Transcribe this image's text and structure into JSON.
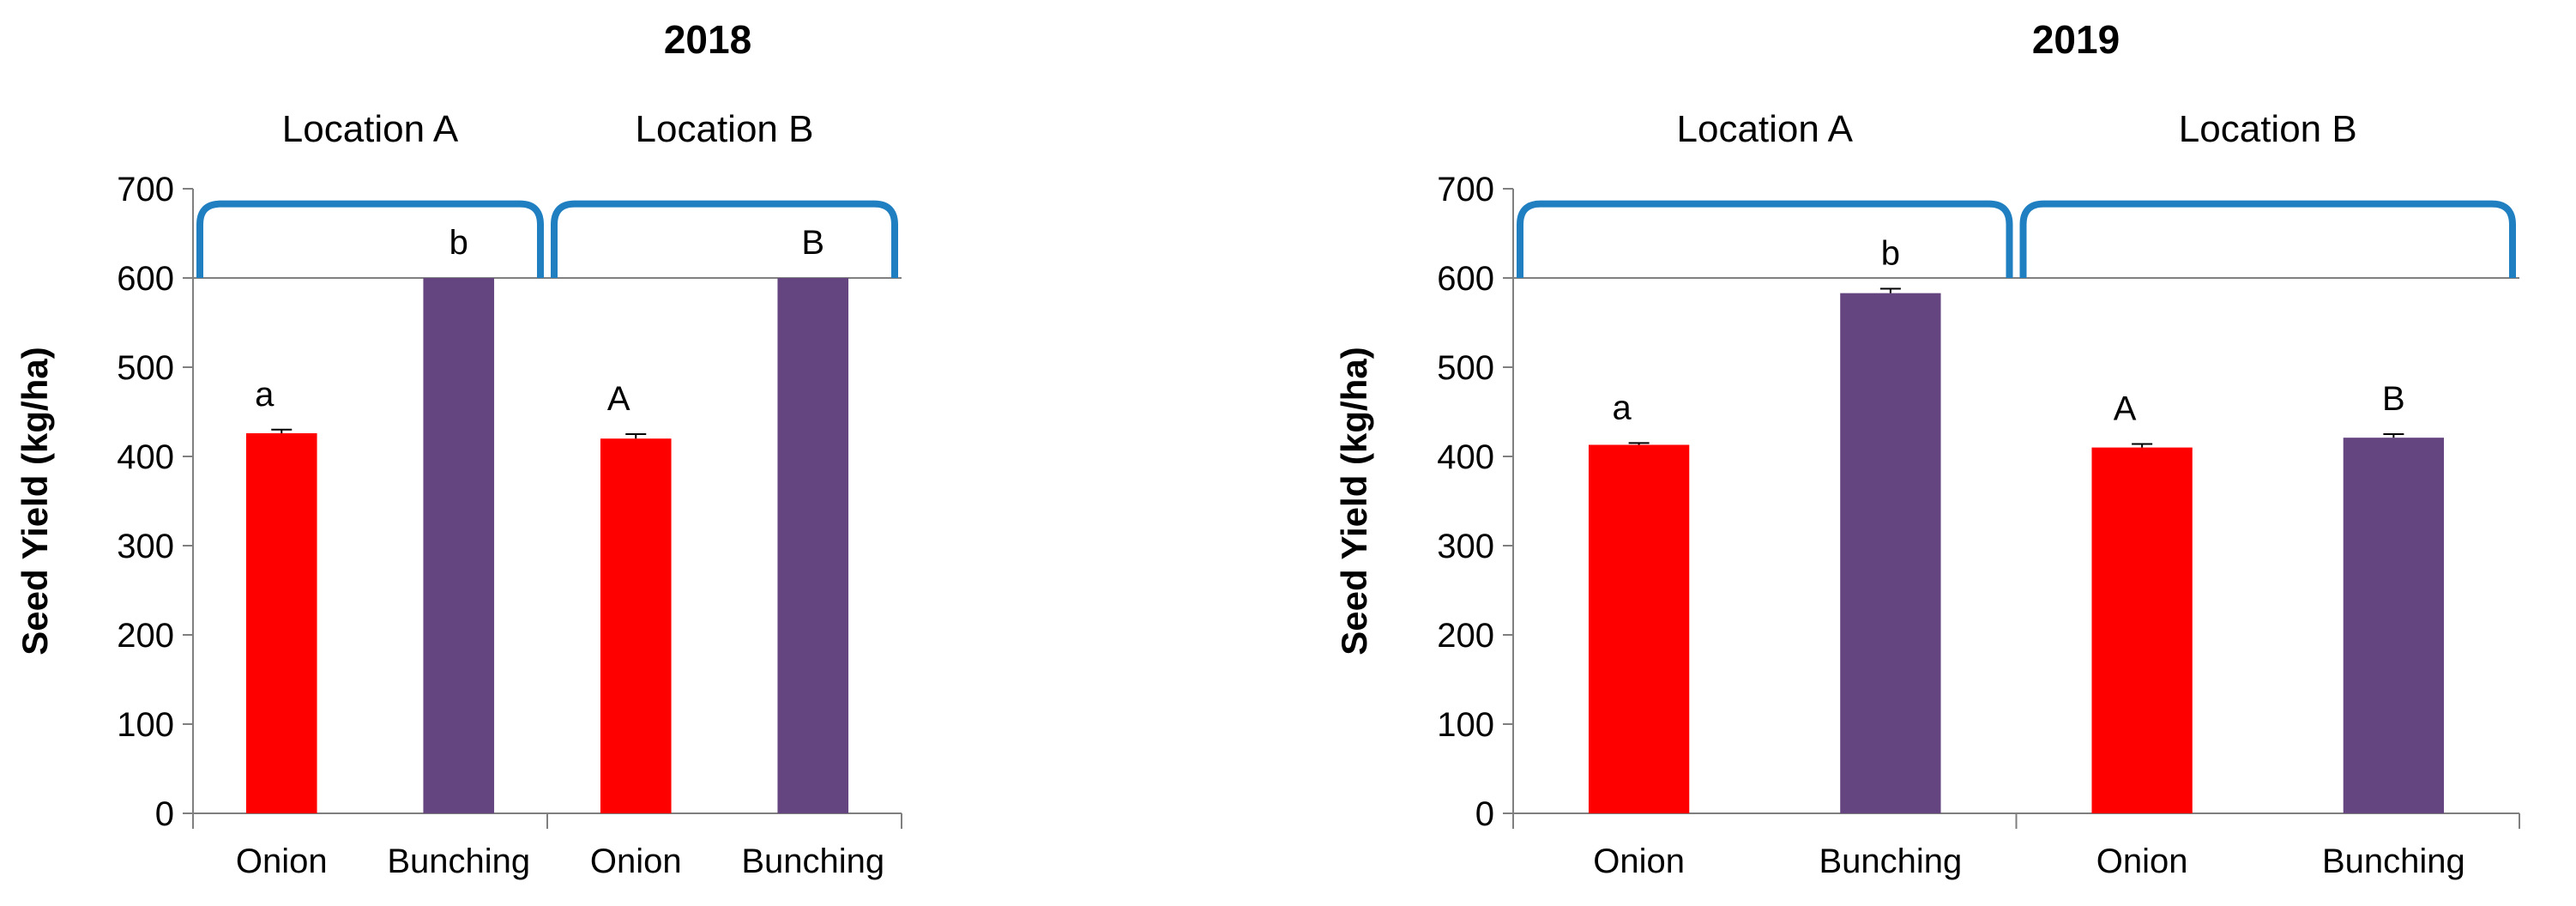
{
  "colors": {
    "onion": "#FF0000",
    "bunching": "#654580",
    "bracket": "#1F7FC1",
    "axis": "#7f7f7f",
    "grid": "#808080"
  },
  "chart_data": [
    {
      "type": "bar",
      "title": "2018",
      "ylabel": "Seed Yield (kg/ha)",
      "ylim": [
        0,
        700
      ],
      "yticks": [
        0,
        100,
        200,
        300,
        400,
        500,
        600,
        700
      ],
      "grid": "single line at 600",
      "groups": [
        {
          "label": "Location A",
          "categories": [
            "Onion",
            "Bunching"
          ],
          "values": [
            426,
            600
          ],
          "errors": [
            4,
            0
          ],
          "letters": [
            "a",
            "b"
          ]
        },
        {
          "label": "Location B",
          "categories": [
            "Onion",
            "Bunching"
          ],
          "values": [
            420,
            600
          ],
          "errors": [
            5,
            0
          ],
          "letters": [
            "A",
            "B"
          ]
        }
      ]
    },
    {
      "type": "bar",
      "title": "2019",
      "ylabel": "Seed Yield (kg/ha)",
      "ylim": [
        0,
        700
      ],
      "yticks": [
        0,
        100,
        200,
        300,
        400,
        500,
        600,
        700
      ],
      "grid": "single line at 600",
      "groups": [
        {
          "label": "Location A",
          "categories": [
            "Onion",
            "Bunching"
          ],
          "values": [
            413,
            583
          ],
          "errors": [
            2,
            5
          ],
          "letters": [
            "a",
            "b"
          ]
        },
        {
          "label": "Location B",
          "categories": [
            "Onion",
            "Bunching"
          ],
          "values": [
            410,
            421
          ],
          "errors": [
            4,
            4
          ],
          "letters": [
            "A",
            "B"
          ]
        }
      ]
    }
  ]
}
